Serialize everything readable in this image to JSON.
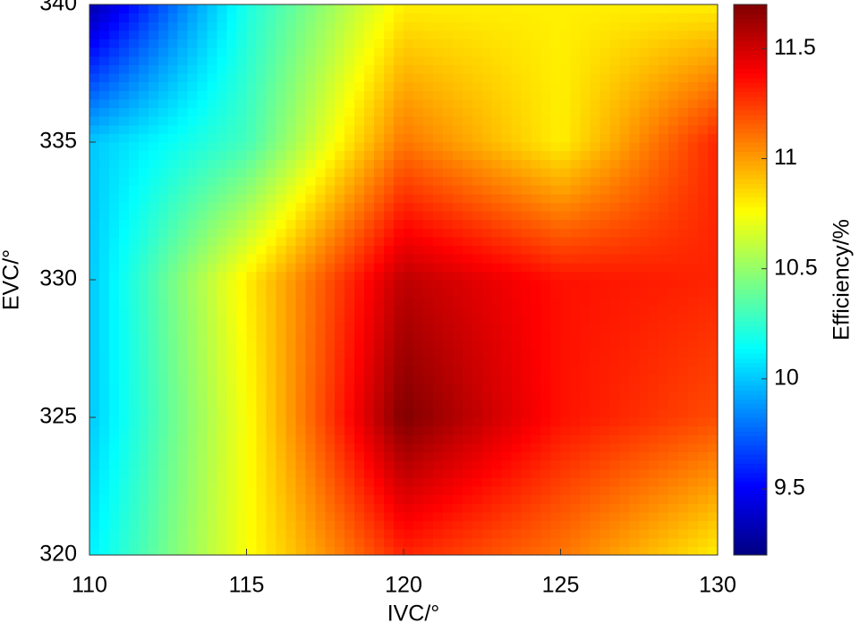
{
  "chart_data": {
    "type": "heatmap",
    "xlabel": "IVC/°",
    "ylabel": "EVC/°",
    "colorbar_label": "Efficiency/%",
    "x": [
      110,
      115,
      120,
      125,
      130
    ],
    "y": [
      320,
      325,
      330,
      335,
      340
    ],
    "values": [
      [
        10.1,
        10.75,
        11.3,
        11.1,
        10.8
      ],
      [
        10.0,
        10.75,
        11.7,
        11.35,
        11.2
      ],
      [
        10.0,
        10.8,
        11.55,
        11.35,
        11.3
      ],
      [
        10.0,
        10.3,
        11.1,
        10.8,
        11.3
      ],
      [
        9.3,
        10.2,
        10.8,
        10.8,
        10.8
      ]
    ],
    "xlim": [
      110,
      130
    ],
    "ylim": [
      320,
      340
    ],
    "xticks": [
      110,
      115,
      120,
      125,
      130
    ],
    "yticks": [
      320,
      325,
      330,
      335,
      340
    ],
    "clim": [
      9.2,
      11.7
    ],
    "cticks": [
      9.5,
      10,
      10.5,
      11,
      11.5
    ],
    "colormap": "jet"
  }
}
